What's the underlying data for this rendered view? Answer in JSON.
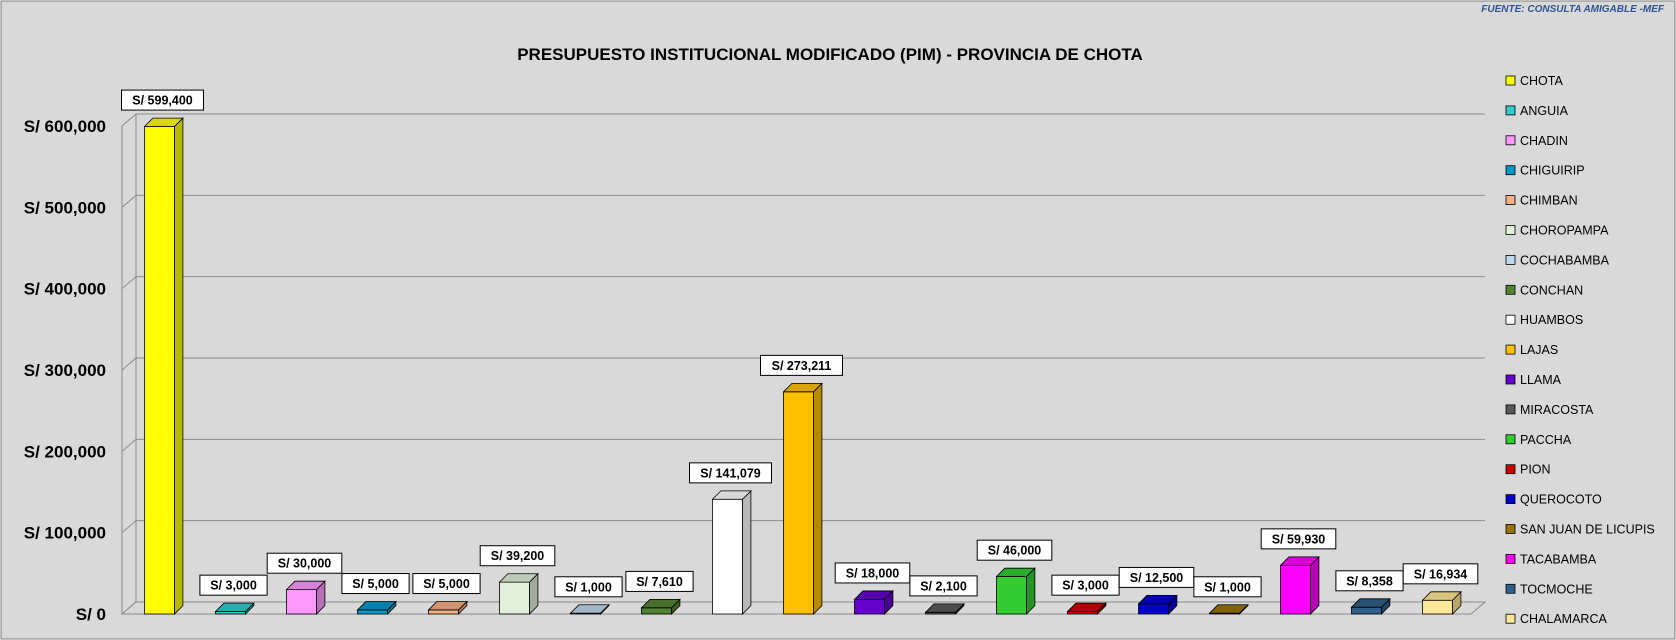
{
  "source_note": "FUENTE: CONSULTA AMIGABLE -MEF",
  "chart_data": {
    "type": "bar",
    "title": "PRESUPUESTO  INSTITUCIONAL MODIFICADO (PIM) - PROVINCIA DE CHOTA",
    "xlabel": "",
    "ylabel": "",
    "ylim": [
      0,
      600000
    ],
    "yticks": [
      0,
      100000,
      200000,
      300000,
      400000,
      500000,
      600000
    ],
    "ytick_labels": [
      "S/ 0",
      "S/ 100,000",
      "S/ 200,000",
      "S/ 300,000",
      "S/ 400,000",
      "S/ 500,000",
      "S/ 600,000"
    ],
    "grid": true,
    "legend_position": "right",
    "categories": [
      "CHOTA",
      "ANGUIA",
      "CHADIN",
      "CHIGUIRIP",
      "CHIMBAN",
      "CHOROPAMPA",
      "COCHABAMBA",
      "CONCHAN",
      "HUAMBOS",
      "LAJAS",
      "LLAMA",
      "MIRACOSTA",
      "PACCHA",
      "PION",
      "QUEROCOTO",
      "SAN JUAN DE LICUPIS",
      "TACABAMBA",
      "TOCMOCHE",
      "CHALAMARCA"
    ],
    "values": [
      599400,
      3000,
      30000,
      5000,
      5000,
      39200,
      1000,
      7610,
      141079,
      273211,
      18000,
      2100,
      46000,
      3000,
      12500,
      1000,
      59930,
      8358,
      16934
    ],
    "value_labels": [
      "S/ 599,400",
      "S/ 3,000",
      "S/ 30,000",
      "S/ 5,000",
      "S/ 5,000",
      "S/ 39,200",
      "S/ 1,000",
      "S/ 7,610",
      "S/ 141,079",
      "S/ 273,211",
      "S/ 18,000",
      "S/ 2,100",
      "S/ 46,000",
      "S/ 3,000",
      "S/ 12,500",
      "S/ 1,000",
      "S/ 59,930",
      "S/ 8,358",
      "S/ 16,934"
    ],
    "colors": [
      "#FFFF00",
      "#33CCCC",
      "#FF99FF",
      "#0099CC",
      "#F4B183",
      "#E2F0D9",
      "#BDD7EE",
      "#548235",
      "#FFFFFF",
      "#FFC000",
      "#6600CC",
      "#595959",
      "#33CC33",
      "#CC0000",
      "#0000CC",
      "#997300",
      "#FF00FF",
      "#2E5F8A",
      "#FFE699"
    ]
  }
}
